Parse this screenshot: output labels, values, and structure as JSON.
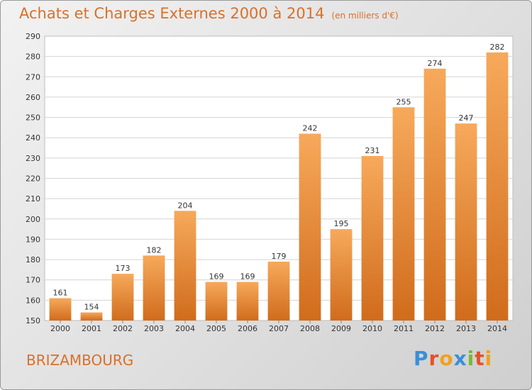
{
  "title": "Achats et Charges Externes 2000 à 2014",
  "subtitle": "(en milliers d'€)",
  "town": "BRIZAMBOURG",
  "logo": "Proxiti",
  "colors": {
    "bar_light": "#f6a85a",
    "bar_dark": "#d2701e",
    "accent": "#d8702a"
  },
  "chart_data": {
    "type": "bar",
    "categories": [
      "2000",
      "2001",
      "2002",
      "2003",
      "2004",
      "2005",
      "2006",
      "2007",
      "2008",
      "2009",
      "2010",
      "2011",
      "2012",
      "2013",
      "2014"
    ],
    "values": [
      161,
      154,
      173,
      182,
      204,
      169,
      169,
      179,
      242,
      195,
      231,
      255,
      274,
      247,
      282
    ],
    "ylim": [
      150,
      290
    ],
    "yticks": [
      150,
      160,
      170,
      180,
      190,
      200,
      210,
      220,
      230,
      240,
      250,
      260,
      270,
      280,
      290
    ],
    "grid": true
  }
}
